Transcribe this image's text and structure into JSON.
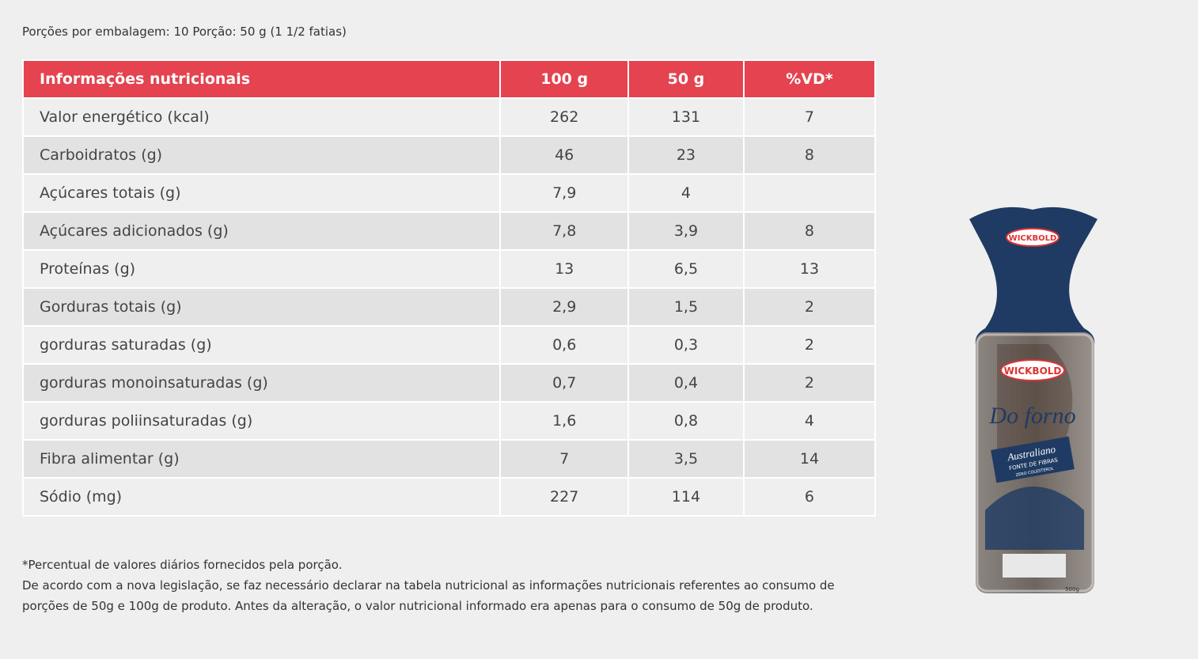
{
  "header": {
    "serving": "Porções por embalagem: 10 Porção: 50 g (1 1/2 fatias)"
  },
  "table": {
    "columns": [
      "Informações nutricionais",
      "100 g",
      "50 g",
      "%VD*"
    ],
    "rows": [
      [
        "Valor energético (kcal)",
        "262",
        "131",
        "7"
      ],
      [
        "Carboidratos (g)",
        "46",
        "23",
        "8"
      ],
      [
        "Açúcares totais (g)",
        "7,9",
        "4",
        null
      ],
      [
        "Açúcares adicionados (g)",
        "7,8",
        "3,9",
        "8"
      ],
      [
        "Proteínas (g)",
        "13",
        "6,5",
        "13"
      ],
      [
        "Gorduras totais (g)",
        "2,9",
        "1,5",
        "2"
      ],
      [
        "gorduras saturadas (g)",
        "0,6",
        "0,3",
        "2"
      ],
      [
        "gorduras monoinsaturadas (g)",
        "0,7",
        "0,4",
        "2"
      ],
      [
        "gorduras poliinsaturadas (g)",
        "1,6",
        "0,8",
        "4"
      ],
      [
        "Fibra alimentar (g)",
        "7",
        "3,5",
        "14"
      ],
      [
        "Sódio (mg)",
        "227",
        "114",
        "6"
      ]
    ]
  },
  "notes": [
    "*Percentual de valores diários fornecidos pela porção.",
    "De acordo com a nova legislação, se faz necessário declarar na tabela nutricional as informações nutricionais referentes ao consumo de porções de 50g e 100g de produto. Antes da alteração, o valor nutricional informado era apenas para o consumo de 50g de produto."
  ],
  "product": {
    "brand": "WICKBOLD",
    "line": "Do forno",
    "variety": "Australiano",
    "claim": "FONTE DE FIBRAS",
    "claim2": "ZERO COLESTEROL",
    "weight": "500g"
  }
}
